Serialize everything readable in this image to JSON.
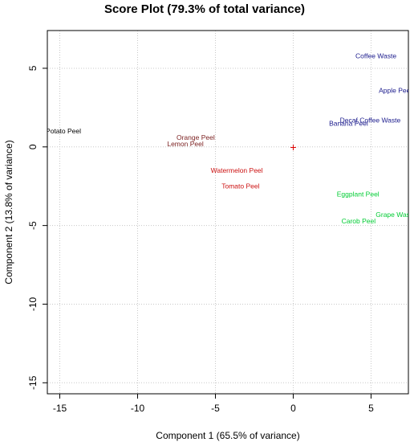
{
  "chart_data": {
    "type": "scatter",
    "title": "Score Plot (79.3% of total variance)",
    "xlabel": "Component 1 (65.5% of variance)",
    "ylabel": "Component 2 (13.8% of variance)",
    "xlim": [
      -15.8,
      7.4
    ],
    "ylim": [
      -15.7,
      7.4
    ],
    "xticks": [
      -15,
      -10,
      -5,
      0,
      5
    ],
    "yticks": [
      -15,
      -10,
      -5,
      0,
      5
    ],
    "grid": true,
    "origin_marker": {
      "symbol": "+",
      "x": 0,
      "y": 0,
      "color": "#dd0000"
    },
    "points": [
      {
        "label": "Coffee Waste",
        "x": 4.0,
        "y": 5.8,
        "color": "#1a1a8c"
      },
      {
        "label": "Apple Peel",
        "x": 5.5,
        "y": 3.6,
        "color": "#1a1a8c"
      },
      {
        "label": "Decaf Coffee Waste",
        "x": 3.0,
        "y": 1.7,
        "color": "#1a1a8c"
      },
      {
        "label": "Banana Peel",
        "x": 2.3,
        "y": 1.5,
        "color": "#1a1a8c"
      },
      {
        "label": "Potato Peel",
        "x": -15.9,
        "y": 1.0,
        "color": "#000000"
      },
      {
        "label": "Orange Peel",
        "x": -7.5,
        "y": 0.6,
        "color": "#7a1f1f"
      },
      {
        "label": "Lemon Peel",
        "x": -8.1,
        "y": 0.2,
        "color": "#7a1f1f"
      },
      {
        "label": "Watermelon Peel",
        "x": -5.3,
        "y": -1.5,
        "color": "#cc1111"
      },
      {
        "label": "Tomato Peel",
        "x": -4.6,
        "y": -2.5,
        "color": "#cc1111"
      },
      {
        "label": "Eggplant Peel",
        "x": 2.8,
        "y": -3.0,
        "color": "#00cc33"
      },
      {
        "label": "Grape Waste",
        "x": 5.3,
        "y": -4.3,
        "color": "#00cc33"
      },
      {
        "label": "Carob Peel",
        "x": 3.1,
        "y": -4.7,
        "color": "#00cc33"
      }
    ]
  }
}
